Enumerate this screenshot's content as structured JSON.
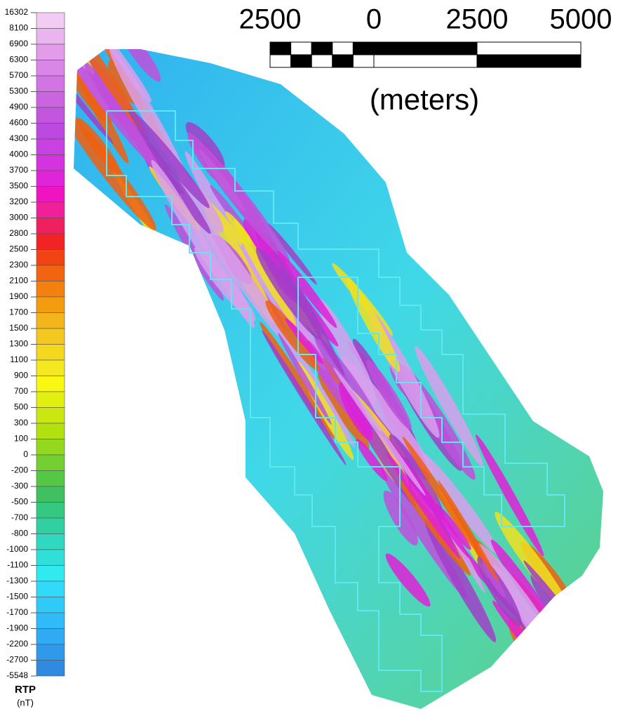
{
  "legend": {
    "title": "RTP",
    "unit": "(nT)",
    "levels": [
      16302,
      8100,
      6900,
      6300,
      5700,
      5300,
      4900,
      4600,
      4300,
      4000,
      3700,
      3500,
      3200,
      3000,
      2800,
      2500,
      2300,
      2100,
      1900,
      1700,
      1500,
      1300,
      1100,
      900,
      700,
      500,
      300,
      100,
      0,
      -200,
      -300,
      -500,
      -700,
      -800,
      -1000,
      -1100,
      -1300,
      -1500,
      -1700,
      -1900,
      -2200,
      -2700,
      -5548
    ],
    "colors": [
      "#f2ccf2",
      "#eab4ee",
      "#e29cea",
      "#da86e8",
      "#d274e4",
      "#ca64e0",
      "#c256dc",
      "#bc4ae0",
      "#c842e2",
      "#d434e0",
      "#e024d8",
      "#ee14c0",
      "#f0209a",
      "#f02060",
      "#f02424",
      "#f04414",
      "#f26410",
      "#f48010",
      "#f49c10",
      "#f4b41c",
      "#f4c820",
      "#f4d820",
      "#f4e820",
      "#f8f814",
      "#e2f010",
      "#cae810",
      "#b2e010",
      "#94d820",
      "#74d030",
      "#54c844",
      "#40c060",
      "#34c880",
      "#30d0a0",
      "#30d8c0",
      "#30e0d8",
      "#30eaf0",
      "#30daf8",
      "#30caf8",
      "#30baf8",
      "#30aaf2",
      "#309aea",
      "#308ae2"
    ]
  },
  "scale_bar": {
    "labels": [
      "2500",
      "0",
      "2500",
      "5000"
    ],
    "unit_label": "(meters)"
  }
}
